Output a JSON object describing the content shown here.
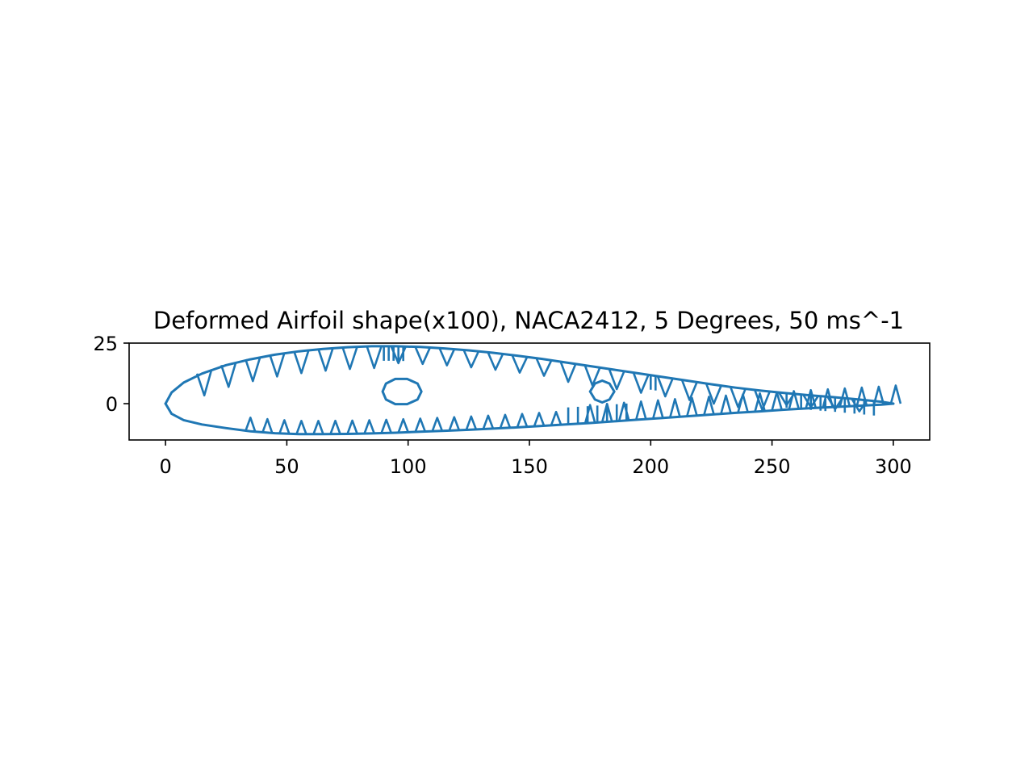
{
  "chart_data": {
    "type": "line",
    "title": "Deformed Airfoil shape(x100), NACA2412, 5 Degrees, 50 ms^-1",
    "xlabel": "",
    "ylabel": "",
    "xlim": [
      -15,
      315
    ],
    "ylim": [
      -15,
      25
    ],
    "xticks": [
      0,
      50,
      100,
      150,
      200,
      250,
      300
    ],
    "yticks": [
      0,
      25
    ],
    "grid": false,
    "legend": "none",
    "line_color": "#1f77b4",
    "series": [
      {
        "x": [
          0,
          2.5,
          7.5,
          15,
          25,
          35,
          45,
          55,
          65,
          75,
          85,
          95,
          105,
          115,
          125,
          135,
          145,
          155,
          165,
          175,
          185,
          195,
          205,
          215,
          225,
          235,
          245,
          255,
          265,
          275,
          285,
          295,
          300
        ],
        "y": [
          0,
          4.6,
          8.7,
          12.4,
          15.9,
          18.3,
          20.2,
          21.6,
          22.6,
          23.3,
          23.7,
          23.7,
          23.4,
          22.8,
          22.0,
          21.0,
          19.8,
          18.5,
          17.0,
          15.5,
          14.0,
          12.5,
          11.0,
          9.5,
          8.0,
          6.6,
          5.4,
          4.4,
          3.5,
          2.7,
          1.8,
          0.8,
          0
        ]
      },
      {
        "x": [
          0,
          2.5,
          7.5,
          15,
          25,
          35,
          45,
          55,
          65,
          75,
          85,
          95,
          105,
          115,
          125,
          135,
          145,
          155,
          165,
          175,
          185,
          195,
          205,
          215,
          225,
          235,
          245,
          255,
          265,
          275,
          285,
          295,
          300
        ],
        "y": [
          0,
          -4.2,
          -6.8,
          -8.6,
          -10.1,
          -11.4,
          -12.2,
          -12.6,
          -12.6,
          -12.5,
          -12.3,
          -12.0,
          -11.6,
          -11.2,
          -10.8,
          -10.3,
          -9.8,
          -9.2,
          -8.6,
          -8.0,
          -7.3,
          -6.6,
          -5.9,
          -5.2,
          -4.5,
          -3.8,
          -3.2,
          -2.5,
          -1.9,
          -1.4,
          -0.9,
          -0.4,
          0
        ]
      },
      {
        "x": [
          89.5,
          90.9,
          94.7,
          99.6,
          103.9,
          105.5,
          103.9,
          99.6,
          94.7,
          90.9,
          89.5,
          90.9,
          94.7,
          99.6,
          103.9,
          105.5,
          103.9,
          99.6,
          94.7,
          90.9
        ],
        "y": [
          5,
          8.3,
          10.2,
          10.2,
          8.3,
          5,
          1.7,
          -0.2,
          -0.2,
          1.7,
          5,
          8.3,
          10.2,
          10.2,
          8.3,
          5,
          1.7,
          -0.2,
          -0.2,
          1.7
        ]
      },
      {
        "x": [
          175,
          177,
          180,
          183,
          185,
          185,
          183,
          180,
          177,
          175,
          175
        ],
        "y": [
          5,
          8.3,
          9.5,
          8.3,
          5,
          5,
          1.7,
          0.5,
          1.7,
          5,
          5
        ]
      }
    ]
  }
}
